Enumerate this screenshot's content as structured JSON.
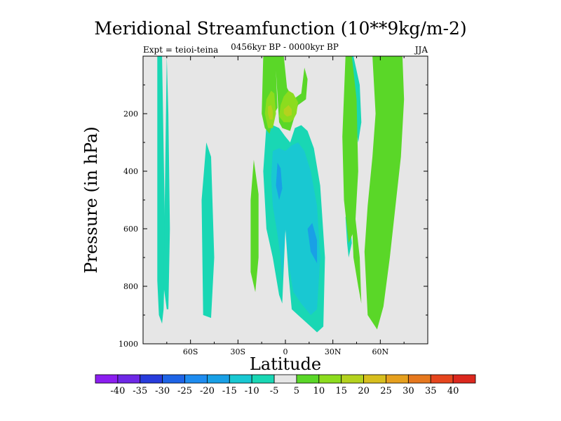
{
  "chart_data": {
    "type": "contour",
    "title": "Meridional Streamfunction (10**9kg/m-2)",
    "subtitle_left": "Expt = teioi-teina",
    "subtitle_center": "0456kyr BP - 0000kyr BP",
    "subtitle_right": "JJA",
    "xlabel": "Latitude",
    "ylabel": "Pressure (in hPa)",
    "xlim": [
      -90,
      90
    ],
    "ylim": [
      1000,
      0
    ],
    "x_ticks": [
      {
        "value": -60,
        "label": "60S"
      },
      {
        "value": -30,
        "label": "30S"
      },
      {
        "value": 0,
        "label": "0"
      },
      {
        "value": 30,
        "label": "30N"
      },
      {
        "value": 60,
        "label": "60N"
      }
    ],
    "y_ticks": [
      {
        "value": 200,
        "label": "200"
      },
      {
        "value": 400,
        "label": "400"
      },
      {
        "value": 600,
        "label": "600"
      },
      {
        "value": 800,
        "label": "800"
      },
      {
        "value": 1000,
        "label": "1000"
      }
    ],
    "colorbar": {
      "labels": [
        "-40",
        "-35",
        "-30",
        "-25",
        "-20",
        "-15",
        "-10",
        "-5",
        "5",
        "10",
        "15",
        "20",
        "25",
        "30",
        "35",
        "40"
      ],
      "colors": [
        "#8c1ef0",
        "#6e28e6",
        "#283cdc",
        "#1e64e6",
        "#1e8cf0",
        "#19a0e6",
        "#19c8d2",
        "#19d7b4",
        "#e6e6e6",
        "#5ad728",
        "#8cdc1e",
        "#b4d21e",
        "#d7be1e",
        "#e6a01e",
        "#e6781e",
        "#e6461e",
        "#dc281e"
      ]
    },
    "regions": [
      {
        "value": -7,
        "lat": [
          -81,
          -81,
          -80,
          -78,
          -77,
          -76,
          -78,
          -81
        ],
        "p": [
          0,
          780,
          900,
          930,
          880,
          650,
          0,
          0
        ]
      },
      {
        "value": -7,
        "lat": [
          -75,
          -77,
          -75,
          -74,
          -73,
          -74,
          -75
        ],
        "p": [
          0,
          800,
          880,
          880,
          600,
          200,
          0
        ]
      },
      {
        "value": -7,
        "lat": [
          -50,
          -53,
          -52,
          -47,
          -45,
          -47,
          -50
        ],
        "p": [
          300,
          500,
          900,
          910,
          700,
          350,
          300
        ]
      },
      {
        "value": -7,
        "lat": [
          -12,
          -14,
          -12,
          -8,
          -4,
          -2,
          0,
          2,
          4,
          8,
          14,
          20,
          24,
          25,
          22,
          18,
          14,
          10,
          6,
          3,
          0,
          -4,
          -8,
          -12
        ],
        "p": [
          240,
          400,
          600,
          700,
          830,
          860,
          600,
          760,
          880,
          900,
          930,
          960,
          940,
          700,
          450,
          320,
          260,
          240,
          250,
          300,
          280,
          250,
          240,
          240
        ]
      },
      {
        "value": -12,
        "lat": [
          -8,
          -9,
          -8,
          -5,
          -3,
          -2,
          0,
          2,
          5,
          10,
          16,
          20,
          22,
          20,
          16,
          12,
          8,
          4,
          0,
          -4,
          -8
        ],
        "p": [
          330,
          420,
          520,
          620,
          700,
          780,
          600,
          720,
          820,
          860,
          900,
          880,
          700,
          520,
          400,
          330,
          300,
          310,
          330,
          320,
          330
        ]
      },
      {
        "value": -17,
        "lat": [
          -5,
          -6,
          -4,
          -2,
          -3,
          -5
        ],
        "p": [
          370,
          450,
          500,
          460,
          390,
          370
        ]
      },
      {
        "value": -17,
        "lat": [
          14,
          16,
          20,
          20,
          17,
          14
        ],
        "p": [
          600,
          680,
          720,
          640,
          580,
          600
        ]
      },
      {
        "value": -7,
        "lat": [
          41,
          43,
          46,
          48,
          47,
          43,
          41
        ],
        "p": [
          0,
          200,
          300,
          230,
          100,
          0,
          0
        ]
      },
      {
        "value": -7,
        "lat": [
          38,
          39,
          40,
          42,
          41,
          39,
          38
        ],
        "p": [
          560,
          650,
          700,
          650,
          580,
          550,
          560
        ]
      },
      {
        "value": 7,
        "lat": [
          -20,
          -22,
          -22,
          -19,
          -17,
          -17,
          -20
        ],
        "p": [
          360,
          500,
          750,
          820,
          700,
          480,
          360
        ]
      },
      {
        "value": 7,
        "lat": [
          -14,
          -15,
          -13,
          -10,
          -7,
          -5,
          -6,
          -4,
          -2,
          3,
          8,
          13,
          14,
          12,
          10,
          5,
          1,
          -1,
          -4,
          -8,
          -14
        ],
        "p": [
          0,
          200,
          250,
          270,
          200,
          180,
          50,
          230,
          250,
          260,
          170,
          150,
          80,
          40,
          130,
          150,
          110,
          0,
          0,
          0,
          0
        ]
      },
      {
        "value": 12,
        "lat": [
          -12,
          -13,
          -11,
          -8,
          -6,
          -7,
          -9,
          -12
        ],
        "p": [
          150,
          200,
          250,
          250,
          200,
          130,
          120,
          150
        ]
      },
      {
        "value": 12,
        "lat": [
          -3,
          -4,
          -1,
          3,
          5,
          7,
          8,
          5,
          2,
          -1,
          -3
        ],
        "p": [
          170,
          210,
          230,
          230,
          220,
          200,
          160,
          130,
          120,
          140,
          170
        ]
      },
      {
        "value": 17,
        "lat": [
          -11,
          -11,
          -10,
          -8,
          -8,
          -9,
          -11
        ],
        "p": [
          175,
          200,
          220,
          220,
          190,
          170,
          175
        ]
      },
      {
        "value": 17,
        "lat": [
          -1,
          -1,
          1,
          4,
          4,
          2,
          -1
        ],
        "p": [
          185,
          200,
          210,
          205,
          185,
          170,
          185
        ]
      },
      {
        "value": 7,
        "lat": [
          38,
          36,
          37,
          40,
          44,
          46,
          45,
          42,
          38
        ],
        "p": [
          0,
          280,
          500,
          650,
          600,
          400,
          150,
          0,
          0
        ]
      },
      {
        "value": 7,
        "lat": [
          42,
          43,
          46,
          48,
          47,
          44,
          42
        ],
        "p": [
          550,
          700,
          800,
          860,
          700,
          550,
          550
        ]
      },
      {
        "value": 7,
        "lat": [
          55,
          57,
          55,
          52,
          50,
          52,
          58,
          62,
          66,
          70,
          73,
          75,
          74,
          66,
          55
        ],
        "p": [
          0,
          200,
          350,
          520,
          680,
          900,
          950,
          870,
          700,
          500,
          350,
          150,
          0,
          0,
          0
        ]
      }
    ]
  }
}
